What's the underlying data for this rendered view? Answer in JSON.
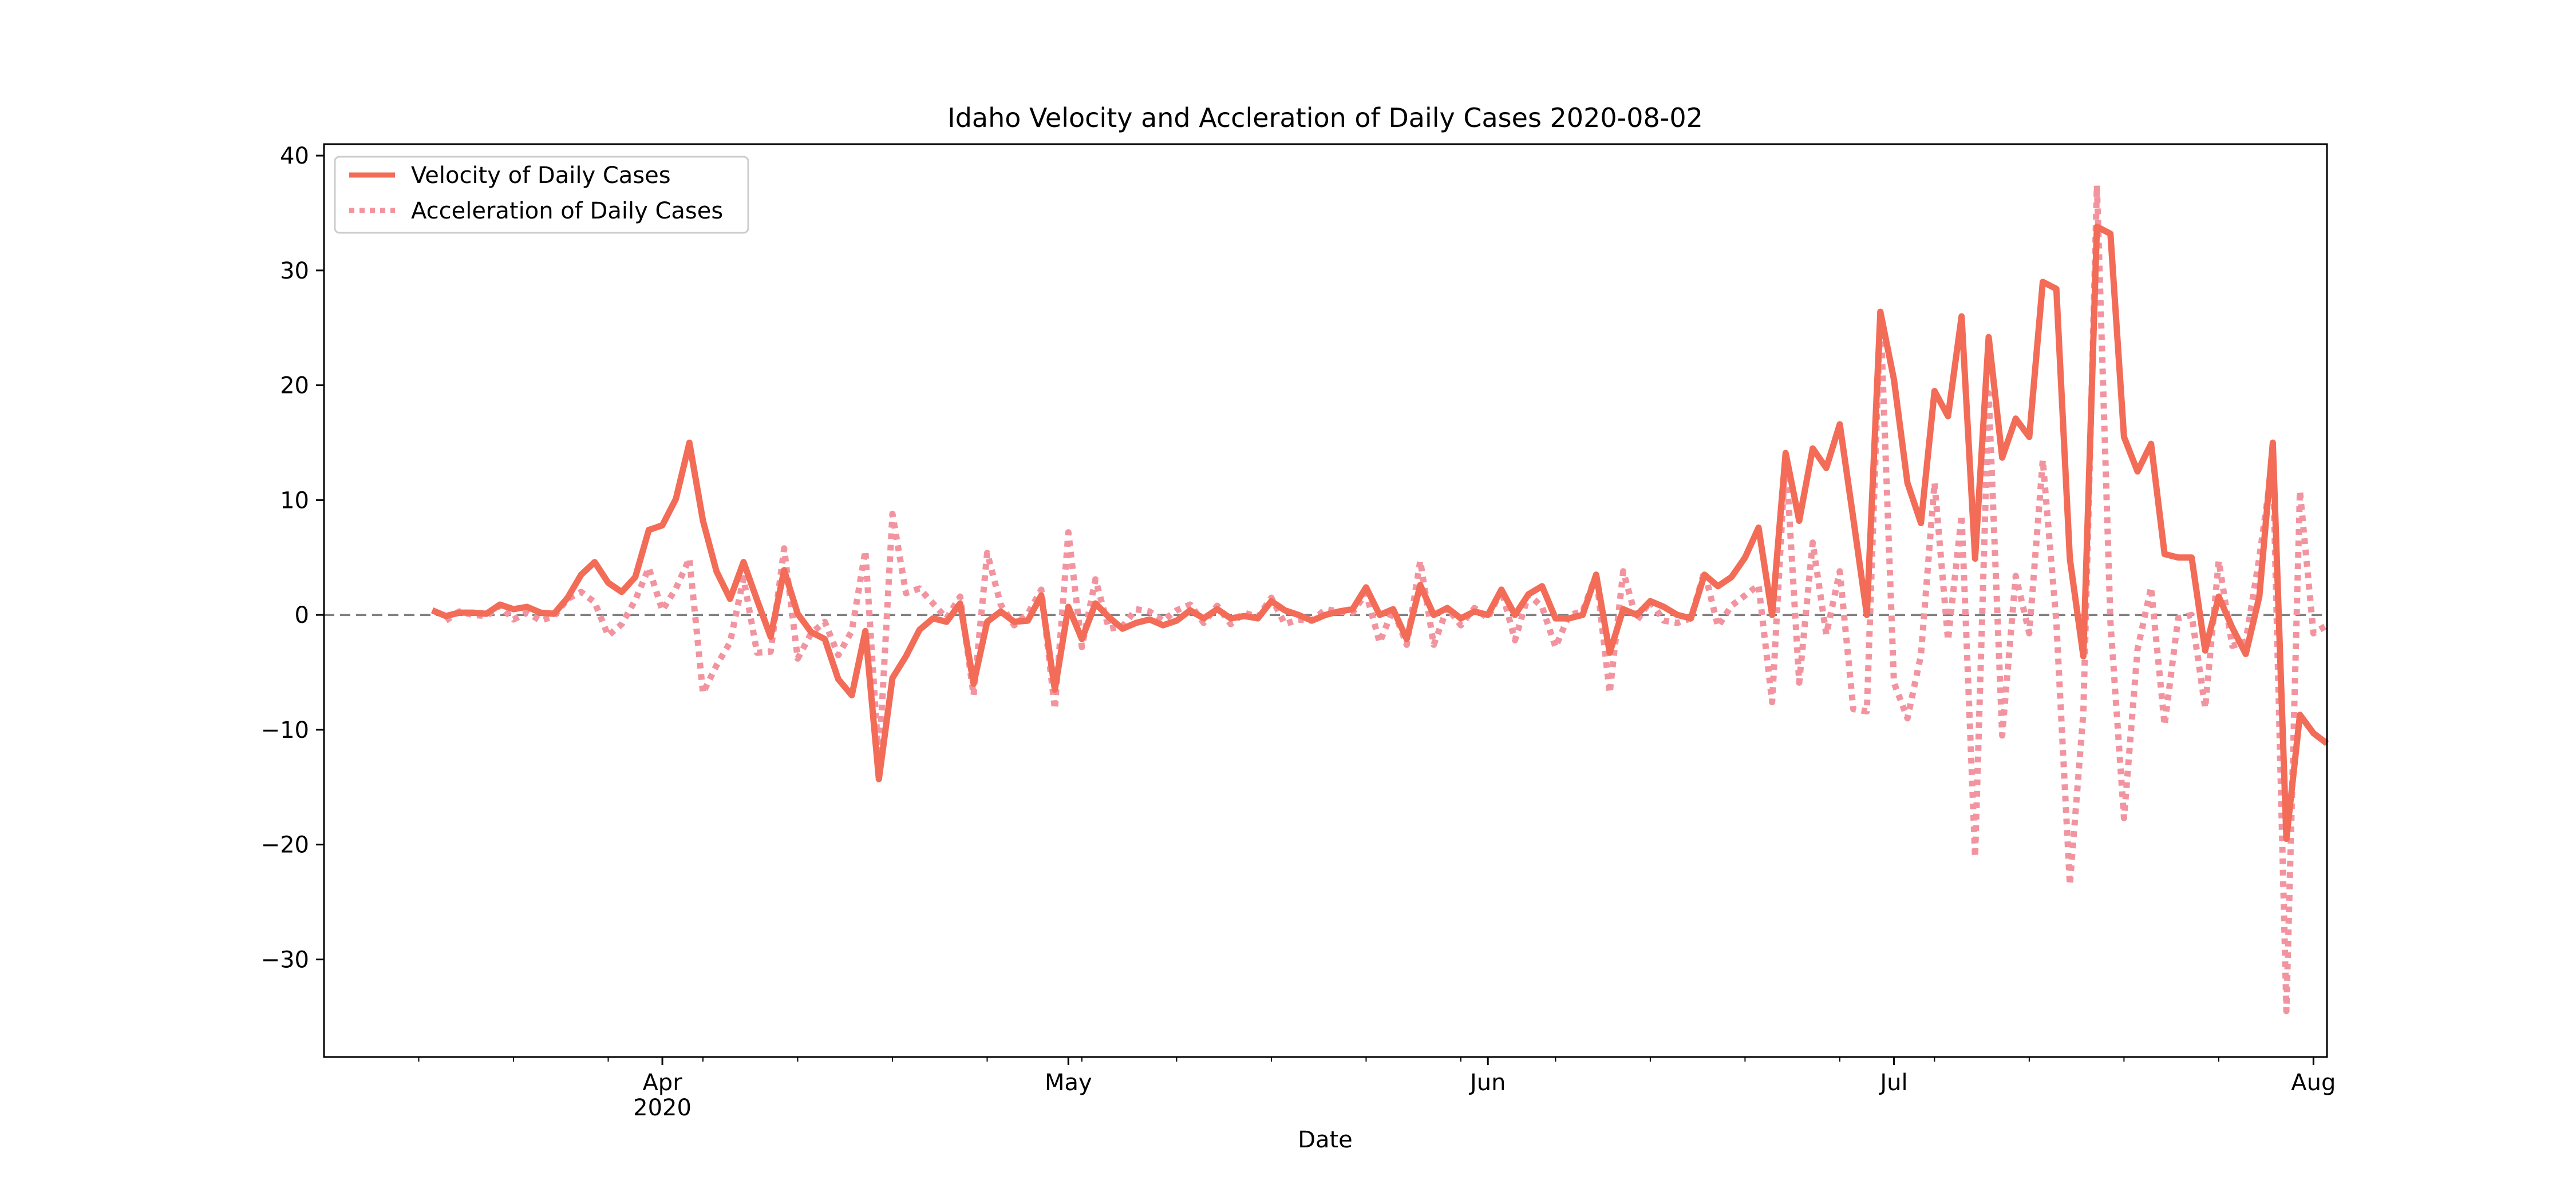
{
  "chart_data": {
    "type": "line",
    "title": "Idaho Velocity and Accleration of Daily Cases 2020-08-02",
    "xlabel": "Date",
    "ylabel": "",
    "xlim": [
      "2020-03-07",
      "2020-08-02"
    ],
    "ylim": [
      -38.5,
      41.0
    ],
    "y_ticks": [
      -30,
      -20,
      -10,
      0,
      10,
      20,
      30,
      40
    ],
    "x_ticks": [
      {
        "date": "2020-04-01",
        "label": "Apr",
        "sublabel": "2020"
      },
      {
        "date": "2020-05-01",
        "label": "May",
        "sublabel": ""
      },
      {
        "date": "2020-06-01",
        "label": "Jun",
        "sublabel": ""
      },
      {
        "date": "2020-07-01",
        "label": "Jul",
        "sublabel": ""
      },
      {
        "date": "2020-08-01",
        "label": "Aug",
        "sublabel": ""
      }
    ],
    "reference_line": {
      "y": 0,
      "style": "dashed",
      "color": "#808080"
    },
    "legend_position": "upper-left",
    "series": [
      {
        "name": "Velocity of Daily Cases",
        "style": "solid",
        "color": "#f26c57",
        "x": [
          "2020-03-15",
          "2020-03-16",
          "2020-03-17",
          "2020-03-18",
          "2020-03-19",
          "2020-03-20",
          "2020-03-21",
          "2020-03-22",
          "2020-03-23",
          "2020-03-24",
          "2020-03-25",
          "2020-03-26",
          "2020-03-27",
          "2020-03-28",
          "2020-03-29",
          "2020-03-30",
          "2020-03-31",
          "2020-04-01",
          "2020-04-02",
          "2020-04-03",
          "2020-04-04",
          "2020-04-05",
          "2020-04-06",
          "2020-04-07",
          "2020-04-08",
          "2020-04-09",
          "2020-04-10",
          "2020-04-11",
          "2020-04-12",
          "2020-04-13",
          "2020-04-14",
          "2020-04-15",
          "2020-04-16",
          "2020-04-17",
          "2020-04-18",
          "2020-04-19",
          "2020-04-20",
          "2020-04-21",
          "2020-04-22",
          "2020-04-23",
          "2020-04-24",
          "2020-04-25",
          "2020-04-26",
          "2020-04-27",
          "2020-04-28",
          "2020-04-29",
          "2020-04-30",
          "2020-05-01",
          "2020-05-02",
          "2020-05-03",
          "2020-05-04",
          "2020-05-05",
          "2020-05-06",
          "2020-05-07",
          "2020-05-08",
          "2020-05-09",
          "2020-05-10",
          "2020-05-11",
          "2020-05-12",
          "2020-05-13",
          "2020-05-14",
          "2020-05-15",
          "2020-05-16",
          "2020-05-17",
          "2020-05-18",
          "2020-05-19",
          "2020-05-20",
          "2020-05-21",
          "2020-05-22",
          "2020-05-23",
          "2020-05-24",
          "2020-05-25",
          "2020-05-26",
          "2020-05-27",
          "2020-05-28",
          "2020-05-29",
          "2020-05-30",
          "2020-05-31",
          "2020-06-01",
          "2020-06-02",
          "2020-06-03",
          "2020-06-04",
          "2020-06-05",
          "2020-06-06",
          "2020-06-07",
          "2020-06-08",
          "2020-06-09",
          "2020-06-10",
          "2020-06-11",
          "2020-06-12",
          "2020-06-13",
          "2020-06-14",
          "2020-06-15",
          "2020-06-16",
          "2020-06-17",
          "2020-06-18",
          "2020-06-19",
          "2020-06-20",
          "2020-06-21",
          "2020-06-22",
          "2020-06-23",
          "2020-06-24",
          "2020-06-25",
          "2020-06-26",
          "2020-06-27",
          "2020-06-28",
          "2020-06-29",
          "2020-06-30",
          "2020-07-01",
          "2020-07-02",
          "2020-07-03",
          "2020-07-04",
          "2020-07-05",
          "2020-07-06",
          "2020-07-07",
          "2020-07-08",
          "2020-07-09",
          "2020-07-10",
          "2020-07-11",
          "2020-07-12",
          "2020-07-13",
          "2020-07-14",
          "2020-07-15",
          "2020-07-16",
          "2020-07-17",
          "2020-07-18",
          "2020-07-19",
          "2020-07-20",
          "2020-07-21",
          "2020-07-22",
          "2020-07-23",
          "2020-07-24",
          "2020-07-25",
          "2020-07-26",
          "2020-07-27",
          "2020-07-28",
          "2020-07-29",
          "2020-07-30",
          "2020-07-31",
          "2020-08-01",
          "2020-08-02"
        ],
        "values": [
          0.4,
          -0.1,
          0.2,
          0.2,
          0.1,
          0.9,
          0.5,
          0.7,
          0.2,
          0.1,
          1.5,
          3.5,
          4.6,
          2.8,
          2.0,
          3.3,
          7.4,
          7.8,
          10.1,
          15.0,
          8.2,
          3.8,
          1.4,
          4.6,
          1.3,
          -1.9,
          3.9,
          0.1,
          -1.5,
          -2.1,
          -5.6,
          -7.0,
          -1.4,
          -14.3,
          -5.5,
          -3.6,
          -1.3,
          -0.3,
          -0.6,
          1.0,
          -6.0,
          -0.6,
          0.3,
          -0.6,
          -0.5,
          1.7,
          -6.5,
          0.7,
          -2.1,
          1.0,
          -0.2,
          -1.2,
          -0.7,
          -0.4,
          -0.9,
          -0.5,
          0.4,
          -0.3,
          0.5,
          -0.3,
          -0.1,
          -0.3,
          1.2,
          0.4,
          0.0,
          -0.5,
          0.0,
          0.3,
          0.5,
          2.4,
          0.0,
          0.5,
          -2.1,
          2.6,
          0.0,
          0.6,
          -0.3,
          0.3,
          0.0,
          2.2,
          0.0,
          1.8,
          2.5,
          -0.3,
          -0.3,
          0.0,
          3.5,
          -3.3,
          0.5,
          0.0,
          1.2,
          0.7,
          0.0,
          -0.3,
          3.5,
          2.5,
          3.3,
          5.0,
          7.6,
          0.0,
          14.1,
          8.2,
          14.5,
          12.8,
          16.6,
          8.4,
          0.0,
          26.4,
          20.5,
          11.5,
          8.0,
          19.5,
          17.3,
          26.0,
          4.9,
          24.2,
          13.7,
          17.1,
          15.5,
          29.0,
          28.4,
          4.9,
          -3.6,
          33.8,
          33.2,
          15.5,
          12.5,
          14.9,
          5.3,
          5.0,
          5.0,
          -3.1,
          1.6,
          -1.1,
          -3.4,
          1.6,
          15.0,
          -19.5,
          -8.7,
          -10.3,
          -11.2
        ]
      },
      {
        "name": "Acceleration of Daily Cases",
        "style": "dotted",
        "color": "#f2949f",
        "x": [
          "2020-03-16",
          "2020-03-17",
          "2020-03-18",
          "2020-03-19",
          "2020-03-20",
          "2020-03-21",
          "2020-03-22",
          "2020-03-23",
          "2020-03-24",
          "2020-03-25",
          "2020-03-26",
          "2020-03-27",
          "2020-03-28",
          "2020-03-29",
          "2020-03-30",
          "2020-03-31",
          "2020-04-01",
          "2020-04-02",
          "2020-04-03",
          "2020-04-04",
          "2020-04-05",
          "2020-04-06",
          "2020-04-07",
          "2020-04-08",
          "2020-04-09",
          "2020-04-10",
          "2020-04-11",
          "2020-04-12",
          "2020-04-13",
          "2020-04-14",
          "2020-04-15",
          "2020-04-16",
          "2020-04-17",
          "2020-04-18",
          "2020-04-19",
          "2020-04-20",
          "2020-04-21",
          "2020-04-22",
          "2020-04-23",
          "2020-04-24",
          "2020-04-25",
          "2020-04-26",
          "2020-04-27",
          "2020-04-28",
          "2020-04-29",
          "2020-04-30",
          "2020-05-01",
          "2020-05-02",
          "2020-05-03",
          "2020-05-04",
          "2020-05-05",
          "2020-05-06",
          "2020-05-07",
          "2020-05-08",
          "2020-05-09",
          "2020-05-10",
          "2020-05-11",
          "2020-05-12",
          "2020-05-13",
          "2020-05-14",
          "2020-05-15",
          "2020-05-16",
          "2020-05-17",
          "2020-05-18",
          "2020-05-19",
          "2020-05-20",
          "2020-05-21",
          "2020-05-22",
          "2020-05-23",
          "2020-05-24",
          "2020-05-25",
          "2020-05-26",
          "2020-05-27",
          "2020-05-28",
          "2020-05-29",
          "2020-05-30",
          "2020-05-31",
          "2020-06-01",
          "2020-06-02",
          "2020-06-03",
          "2020-06-04",
          "2020-06-05",
          "2020-06-06",
          "2020-06-07",
          "2020-06-08",
          "2020-06-09",
          "2020-06-10",
          "2020-06-11",
          "2020-06-12",
          "2020-06-13",
          "2020-06-14",
          "2020-06-15",
          "2020-06-16",
          "2020-06-17",
          "2020-06-18",
          "2020-06-19",
          "2020-06-20",
          "2020-06-21",
          "2020-06-22",
          "2020-06-23",
          "2020-06-24",
          "2020-06-25",
          "2020-06-26",
          "2020-06-27",
          "2020-06-28",
          "2020-06-29",
          "2020-06-30",
          "2020-07-01",
          "2020-07-02",
          "2020-07-03",
          "2020-07-04",
          "2020-07-05",
          "2020-07-06",
          "2020-07-07",
          "2020-07-08",
          "2020-07-09",
          "2020-07-10",
          "2020-07-11",
          "2020-07-12",
          "2020-07-13",
          "2020-07-14",
          "2020-07-15",
          "2020-07-16",
          "2020-07-17",
          "2020-07-18",
          "2020-07-19",
          "2020-07-20",
          "2020-07-21",
          "2020-07-22",
          "2020-07-23",
          "2020-07-24",
          "2020-07-25",
          "2020-07-26",
          "2020-07-27",
          "2020-07-28",
          "2020-07-29",
          "2020-07-30",
          "2020-07-31",
          "2020-08-01",
          "2020-08-02"
        ],
        "values": [
          -0.5,
          0.3,
          0.0,
          -0.1,
          0.8,
          -0.4,
          0.2,
          -0.5,
          -0.1,
          1.4,
          2.0,
          1.1,
          -1.8,
          -0.8,
          1.3,
          4.1,
          0.4,
          2.3,
          4.9,
          -6.8,
          -4.4,
          -2.4,
          3.2,
          -3.3,
          -3.2,
          5.8,
          -3.8,
          -1.6,
          -0.6,
          -3.5,
          -1.4,
          5.6,
          -12.9,
          8.8,
          1.9,
          2.3,
          1.0,
          -0.3,
          1.6,
          -7.0,
          5.4,
          0.9,
          -0.9,
          0.1,
          2.2,
          -8.2,
          7.2,
          -2.8,
          3.1,
          -1.2,
          -1.0,
          0.5,
          0.3,
          -0.5,
          0.4,
          0.9,
          -0.7,
          0.8,
          -0.8,
          0.2,
          -0.2,
          1.5,
          -0.8,
          -0.4,
          -0.5,
          0.5,
          0.3,
          0.2,
          1.9,
          -2.4,
          0.5,
          -2.6,
          4.7,
          -2.6,
          0.6,
          -0.9,
          0.6,
          -0.3,
          2.2,
          -2.2,
          1.8,
          0.7,
          -2.8,
          0.0,
          0.3,
          3.5,
          -6.8,
          3.8,
          -0.5,
          1.2,
          -0.5,
          -0.7,
          -0.3,
          3.8,
          -1.0,
          0.8,
          1.7,
          2.6,
          -7.6,
          14.1,
          -5.9,
          6.3,
          -1.7,
          3.8,
          -8.2,
          -8.4,
          26.4,
          -5.9,
          -9.0,
          -3.5,
          11.5,
          -2.2,
          8.7,
          -21.1,
          19.3,
          -10.5,
          3.4,
          -1.6,
          13.5,
          -0.6,
          -23.5,
          -8.5,
          37.4,
          -0.6,
          -17.7,
          -3.0,
          2.4,
          -9.6,
          -0.3,
          0.0,
          -8.1,
          4.7,
          -2.7,
          -2.3,
          5.0,
          13.4,
          -34.5,
          10.8,
          -1.6,
          -0.9
        ]
      }
    ]
  }
}
